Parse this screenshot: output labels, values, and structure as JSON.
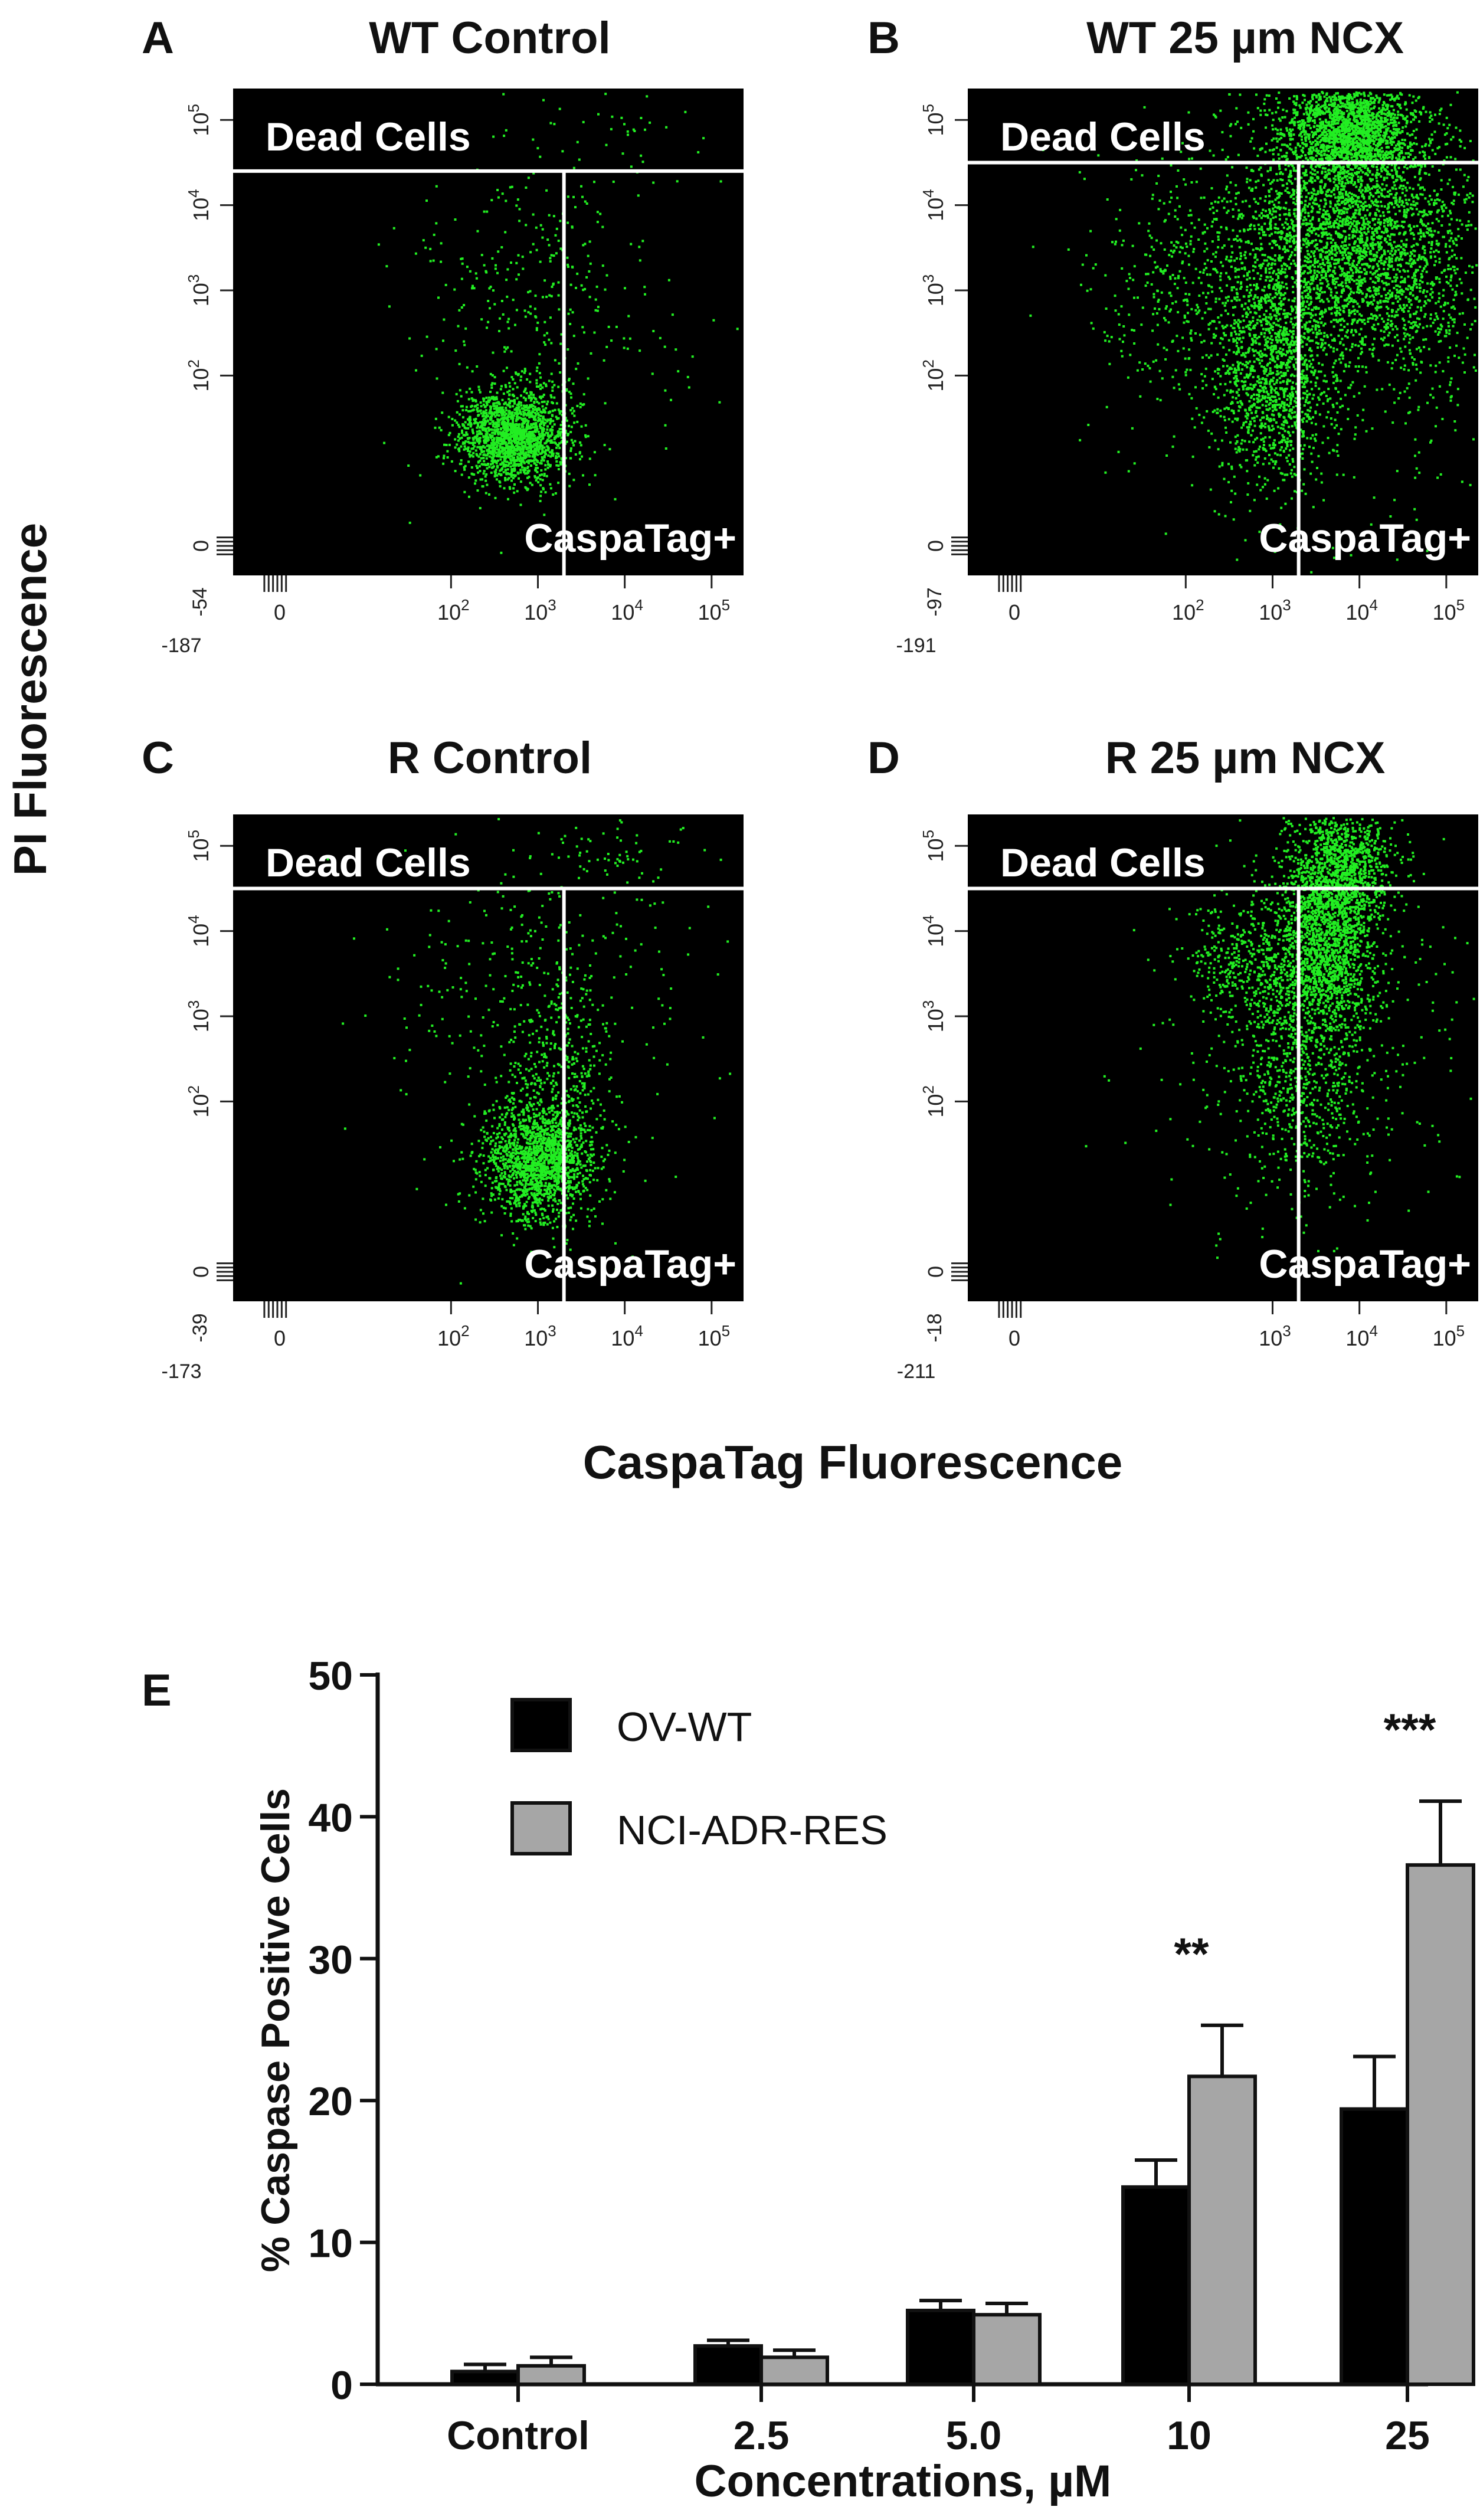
{
  "figure": {
    "y_axis_title": "PI Fluorescence",
    "x_axis_title": "CaspaTag Fluorescence"
  },
  "chart_data": [
    {
      "type": "scatter",
      "letter": "A",
      "title": "WT Control",
      "quadrant_labels": [
        "Dead Cells",
        "CaspaTag+"
      ],
      "x_ticks": [
        "-187",
        "0",
        "10^2",
        "10^3",
        "10^4",
        "10^5"
      ],
      "y_ticks": [
        "-54",
        "0",
        "10^2",
        "10^3",
        "10^4",
        "10^5"
      ],
      "gates": {
        "x": 3.3,
        "y": 4.4
      },
      "clusters": [
        {
          "cx": 2.7,
          "cy": 1.3,
          "sx": 0.32,
          "sy": 0.28,
          "n": 1800
        },
        {
          "cx": 2.8,
          "cy": 2.9,
          "sx": 0.7,
          "sy": 0.9,
          "n": 260
        },
        {
          "cx": 3.8,
          "cy": 3.0,
          "sx": 0.9,
          "sy": 1.0,
          "n": 80
        },
        {
          "cx": 3.9,
          "cy": 4.9,
          "sx": 0.5,
          "sy": 0.3,
          "n": 25
        }
      ]
    },
    {
      "type": "scatter",
      "letter": "B",
      "title": "WT 25 µm NCX",
      "quadrant_labels": [
        "Dead Cells",
        "CaspaTag+"
      ],
      "x_ticks": [
        "-191",
        "0",
        "10^2",
        "10^3",
        "10^4",
        "10^5"
      ],
      "y_ticks": [
        "-97",
        "0",
        "10^2",
        "10^3",
        "10^4",
        "10^5"
      ],
      "gates": {
        "x": 3.3,
        "y": 4.5
      },
      "clusters": [
        {
          "cx": 3.9,
          "cy": 4.9,
          "sx": 0.38,
          "sy": 0.3,
          "n": 1700
        },
        {
          "cx": 3.7,
          "cy": 3.7,
          "sx": 0.55,
          "sy": 0.75,
          "n": 2200
        },
        {
          "cx": 3.0,
          "cy": 2.0,
          "sx": 0.35,
          "sy": 0.7,
          "n": 1300
        },
        {
          "cx": 4.5,
          "cy": 3.4,
          "sx": 0.5,
          "sy": 0.8,
          "n": 900
        },
        {
          "cx": 2.2,
          "cy": 3.1,
          "sx": 0.6,
          "sy": 0.7,
          "n": 450
        },
        {
          "cx": 3.2,
          "cy": 2.6,
          "sx": 1.3,
          "sy": 1.4,
          "n": 350
        }
      ]
    },
    {
      "type": "scatter",
      "letter": "C",
      "title": "R Control",
      "quadrant_labels": [
        "Dead Cells",
        "CaspaTag+"
      ],
      "x_ticks": [
        "-173",
        "0",
        "10^2",
        "10^3",
        "10^4",
        "10^5"
      ],
      "y_ticks": [
        "-39",
        "0",
        "10^2",
        "10^3",
        "10^4",
        "10^5"
      ],
      "gates": {
        "x": 3.3,
        "y": 4.5
      },
      "clusters": [
        {
          "cx": 3.0,
          "cy": 1.3,
          "sx": 0.32,
          "sy": 0.35,
          "n": 1600
        },
        {
          "cx": 3.2,
          "cy": 2.4,
          "sx": 0.35,
          "sy": 0.8,
          "n": 400
        },
        {
          "cx": 2.8,
          "cy": 3.0,
          "sx": 0.8,
          "sy": 1.0,
          "n": 220
        },
        {
          "cx": 3.8,
          "cy": 3.1,
          "sx": 1.0,
          "sy": 1.1,
          "n": 90
        },
        {
          "cx": 3.8,
          "cy": 4.9,
          "sx": 0.4,
          "sy": 0.3,
          "n": 60
        }
      ]
    },
    {
      "type": "scatter",
      "letter": "D",
      "title": "R 25 µm NCX",
      "quadrant_labels": [
        "Dead Cells",
        "CaspaTag+"
      ],
      "x_ticks": [
        "-211",
        "0",
        "10^3",
        "10^4",
        "10^5"
      ],
      "y_ticks": [
        "-18",
        "0",
        "10^2",
        "10^3",
        "10^4",
        "10^5"
      ],
      "gates": {
        "x": 3.3,
        "y": 4.5
      },
      "clusters": [
        {
          "cx": 3.8,
          "cy": 4.8,
          "sx": 0.3,
          "sy": 0.35,
          "n": 900
        },
        {
          "cx": 3.6,
          "cy": 3.9,
          "sx": 0.3,
          "sy": 0.55,
          "n": 1600
        },
        {
          "cx": 3.3,
          "cy": 2.5,
          "sx": 0.4,
          "sy": 0.8,
          "n": 800
        },
        {
          "cx": 2.7,
          "cy": 3.7,
          "sx": 0.35,
          "sy": 0.35,
          "n": 350
        },
        {
          "cx": 3.6,
          "cy": 3.0,
          "sx": 1.1,
          "sy": 1.2,
          "n": 300
        }
      ]
    },
    {
      "type": "bar",
      "letter": "E",
      "categories": [
        "Control",
        "2.5",
        "5.0",
        "10",
        "25"
      ],
      "series": [
        {
          "name": "OV-WT",
          "values": [
            0.9,
            2.7,
            5.2,
            13.9,
            19.4
          ],
          "errors": [
            0.5,
            0.4,
            0.7,
            1.9,
            3.7
          ],
          "color": "#000000"
        },
        {
          "name": "NCI-ADR-RES",
          "values": [
            1.3,
            1.9,
            4.9,
            21.7,
            36.6
          ],
          "errors": [
            0.6,
            0.5,
            0.8,
            3.6,
            4.5
          ],
          "color": "#a6a6a6"
        }
      ],
      "significance": [
        "",
        "",
        "",
        "**",
        "***"
      ],
      "xlabel": "Concentrations, µM",
      "ylabel": "% Caspase Positive Cells",
      "ylim": [
        0,
        50
      ],
      "yticks": [
        0,
        10,
        20,
        30,
        40,
        50
      ],
      "legend_position": "top-left"
    }
  ]
}
